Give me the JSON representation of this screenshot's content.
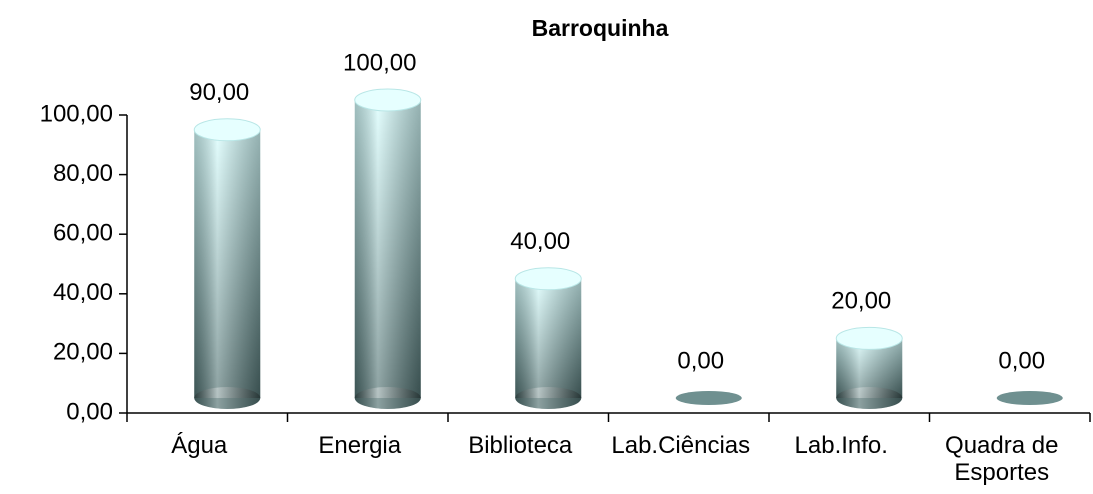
{
  "chart_data": {
    "type": "bar",
    "title": "Barroquinha",
    "categories": [
      "Água",
      "Energia",
      "Biblioteca",
      "Lab.Ciências",
      "Lab.Info.",
      "Quadra de Esportes"
    ],
    "values": [
      90,
      100,
      40,
      0,
      20,
      0
    ],
    "value_labels": [
      "90,00",
      "100,00",
      "40,00",
      "0,00",
      "20,00",
      "0,00"
    ],
    "color": "#bff5f5",
    "ylim": [
      0,
      100
    ],
    "yticks": [
      {
        "value": 0,
        "label": "0,00"
      },
      {
        "value": 20,
        "label": "20,00"
      },
      {
        "value": 40,
        "label": "40,00"
      },
      {
        "value": 60,
        "label": "60,00"
      },
      {
        "value": 80,
        "label": "80,00"
      },
      {
        "value": 100,
        "label": "100,00"
      }
    ]
  }
}
